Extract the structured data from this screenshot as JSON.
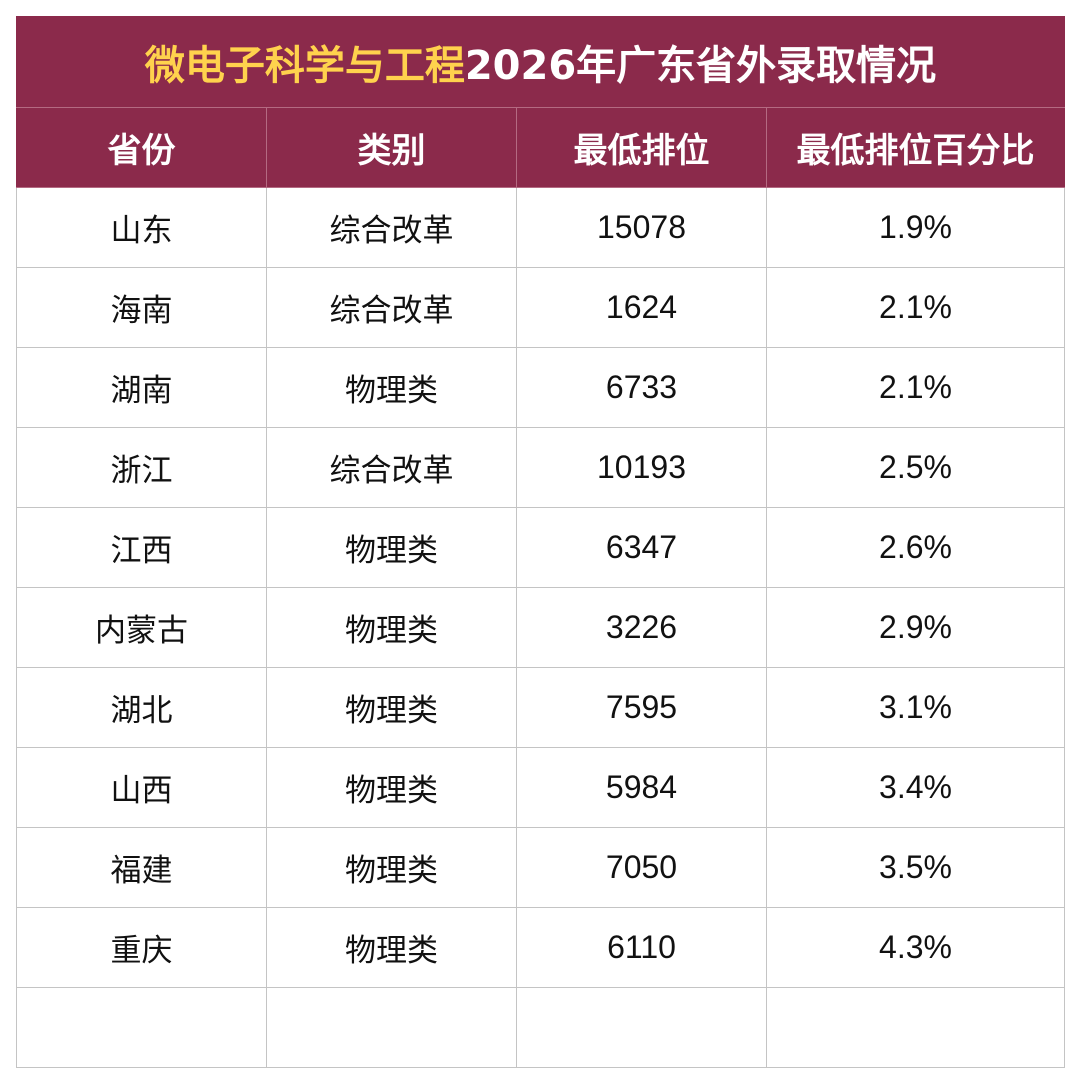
{
  "table": {
    "title_highlight": "微电子科学与工程",
    "title_rest": "2026年广东省外录取情况",
    "headers": [
      "省份",
      "类别",
      "最低排位",
      "最低排位百分比"
    ],
    "rows": [
      {
        "province": "山东",
        "category": "综合改革",
        "min_rank": "15078",
        "min_rank_pct": "1.9%"
      },
      {
        "province": "海南",
        "category": "综合改革",
        "min_rank": "1624",
        "min_rank_pct": "2.1%"
      },
      {
        "province": "湖南",
        "category": "物理类",
        "min_rank": "6733",
        "min_rank_pct": "2.1%"
      },
      {
        "province": "浙江",
        "category": "综合改革",
        "min_rank": "10193",
        "min_rank_pct": "2.5%"
      },
      {
        "province": "江西",
        "category": "物理类",
        "min_rank": "6347",
        "min_rank_pct": "2.6%"
      },
      {
        "province": "内蒙古",
        "category": "物理类",
        "min_rank": "3226",
        "min_rank_pct": "2.9%"
      },
      {
        "province": "湖北",
        "category": "物理类",
        "min_rank": "7595",
        "min_rank_pct": "3.1%"
      },
      {
        "province": "山西",
        "category": "物理类",
        "min_rank": "5984",
        "min_rank_pct": "3.4%"
      },
      {
        "province": "福建",
        "category": "物理类",
        "min_rank": "7050",
        "min_rank_pct": "3.5%"
      },
      {
        "province": "重庆",
        "category": "物理类",
        "min_rank": "6110",
        "min_rank_pct": "4.3%"
      }
    ]
  }
}
